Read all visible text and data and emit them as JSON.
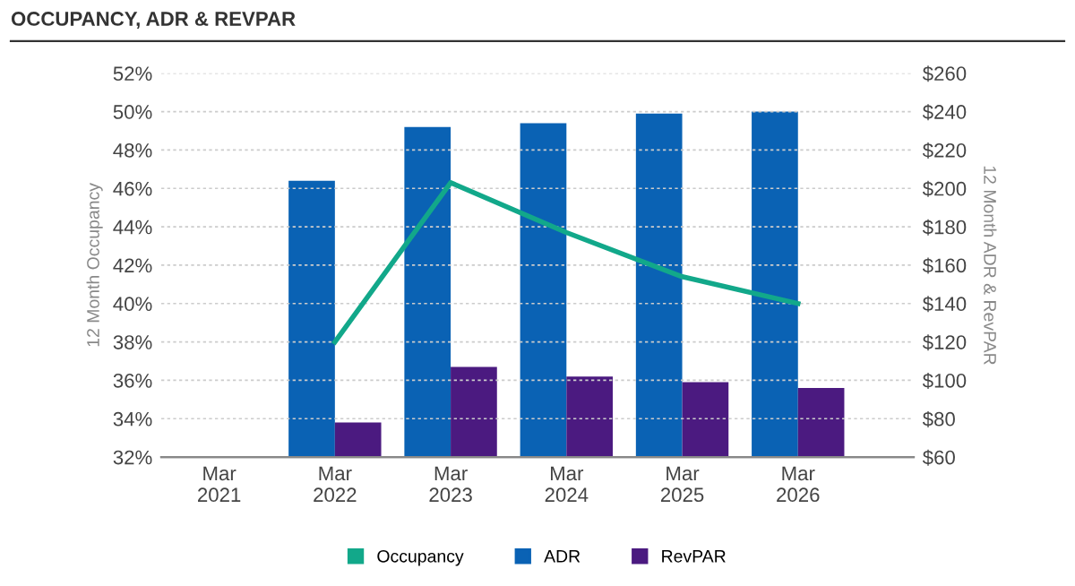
{
  "chart_data": {
    "type": "bar",
    "title": "OCCUPANCY, ADR & REVPAR",
    "categories": [
      "Mar\n2021",
      "Mar\n2022",
      "Mar\n2023",
      "Mar\n2024",
      "Mar\n2025",
      "Mar\n2026"
    ],
    "series": [
      {
        "name": "Occupancy",
        "type": "line",
        "color": "#12a88a",
        "values": [
          null,
          38.0,
          46.3,
          43.7,
          41.4,
          40.0
        ]
      },
      {
        "name": "ADR",
        "axis": "y2",
        "color": "#0a62b4",
        "values": [
          null,
          204,
          232,
          234,
          239,
          240
        ]
      },
      {
        "name": "RevPAR",
        "axis": "y2",
        "color": "#4b1a80",
        "values": [
          null,
          78,
          107,
          102,
          99,
          96
        ]
      }
    ],
    "ylabel": "12 Month Occupancy",
    "y2label": "12 Month ADR & RevPAR",
    "ylim": [
      32,
      52
    ],
    "yticks": [
      {
        "value": 32,
        "label": "32%"
      },
      {
        "value": 34,
        "label": "34%"
      },
      {
        "value": 36,
        "label": "36%"
      },
      {
        "value": 38,
        "label": "38%"
      },
      {
        "value": 40,
        "label": "40%"
      },
      {
        "value": 42,
        "label": "42%"
      },
      {
        "value": 44,
        "label": "44%"
      },
      {
        "value": 46,
        "label": "46%"
      },
      {
        "value": 48,
        "label": "48%"
      },
      {
        "value": 50,
        "label": "50%"
      },
      {
        "value": 52,
        "label": "52%"
      }
    ],
    "y2lim": [
      60,
      260
    ],
    "y2ticks": [
      {
        "value": 60,
        "label": "$60"
      },
      {
        "value": 80,
        "label": "$80"
      },
      {
        "value": 100,
        "label": "$100"
      },
      {
        "value": 120,
        "label": "$120"
      },
      {
        "value": 140,
        "label": "$140"
      },
      {
        "value": 160,
        "label": "$160"
      },
      {
        "value": 180,
        "label": "$180"
      },
      {
        "value": 200,
        "label": "$200"
      },
      {
        "value": 220,
        "label": "$220"
      },
      {
        "value": 240,
        "label": "$240"
      },
      {
        "value": 260,
        "label": "$260"
      }
    ],
    "grid": "y",
    "legend": "bottom",
    "line_style": "solid",
    "marker": "none"
  }
}
